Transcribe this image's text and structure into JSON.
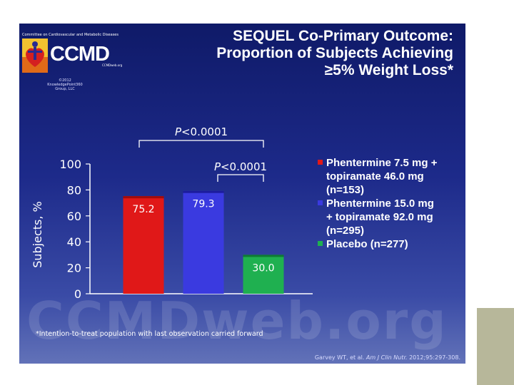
{
  "logo": {
    "org_name": "Committee on Cardiovascular and Metabolic Diseases",
    "acronym": "CCMD",
    "site": "CCMDweb.org",
    "copyright": "©2012 KnowledgePoint360 Group, LLC"
  },
  "title": {
    "line1": "SEQUEL Co-Primary Outcome:",
    "line2": "Proportion of Subjects Achieving",
    "line3": "≥5% Weight Loss*"
  },
  "watermark": "CCMDweb.org",
  "footnote": "*Intention-to-treat population with last observation carried forward",
  "citation": {
    "authors": "Garvey WT, et al.",
    "journal": "Am J Clin Nutr.",
    "details": "2012;95:297-308."
  },
  "colors": {
    "red": "#e01818",
    "blue": "#3a3ae0",
    "green": "#1fb050"
  },
  "chart_data": {
    "type": "bar",
    "title": "",
    "ylabel": "Subjects, %",
    "xlabel": "",
    "ylim": [
      0,
      100
    ],
    "yticks": [
      0,
      20,
      40,
      60,
      80,
      100
    ],
    "categories": [
      "Phentermine 7.5 mg + topiramate 46.0 mg (n=153)",
      "Phentermine 15.0 mg + topiramate 92.0 mg (n=295)",
      "Placebo (n=277)"
    ],
    "values": [
      75.2,
      79.3,
      30.0
    ],
    "value_labels": [
      "75.2",
      "79.3",
      "30.0"
    ],
    "legend": [
      {
        "line1": "Phentermine 7.5 mg +",
        "line2": "topiramate 46.0 mg",
        "line3": "(n=153)"
      },
      {
        "line1": "Phentermine 15.0 mg",
        "line2": "+ topiramate 92.0 mg",
        "line3": "(n=295)"
      },
      {
        "line1": "Placebo (n=277)"
      }
    ],
    "annotations": [
      {
        "text": "P<0.0001",
        "italic_part": "P",
        "rest": "<0.0001",
        "between": [
          0,
          2
        ]
      },
      {
        "text": "P<0.0001",
        "italic_part": "P",
        "rest": "<0.0001",
        "between": [
          1,
          2
        ]
      }
    ]
  }
}
